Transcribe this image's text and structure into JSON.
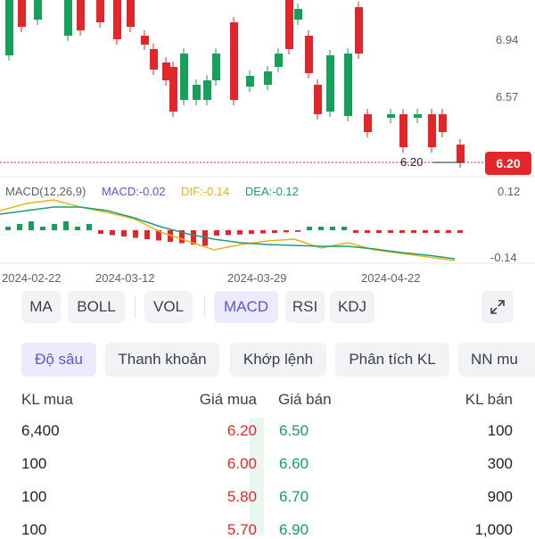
{
  "price_axis": {
    "labels": [
      "6.94",
      "6.57"
    ]
  },
  "last_price": {
    "label": "6.20",
    "badge": "6.20"
  },
  "macd_legend": {
    "params": "MACD(12,26,9)",
    "macd": "MACD:-0.02",
    "dif": "DIF:-0.14",
    "dea": "DEA:-0.12",
    "axis_top": "0.12",
    "axis_bottom": "-0.14"
  },
  "dates": [
    "2024-02-22",
    "2024-03-12",
    "2024-03-29",
    "2024-04-22"
  ],
  "indicators": {
    "buttons": [
      {
        "label": "MA",
        "active": false
      },
      {
        "label": "BOLL",
        "active": false
      },
      {
        "label": "VOL",
        "active": false
      },
      {
        "label": "MACD",
        "active": true
      },
      {
        "label": "RSI",
        "active": false
      },
      {
        "label": "KDJ",
        "active": false
      }
    ],
    "expand_icon": "expand-icon"
  },
  "tabs": [
    {
      "label": "Độ sâu",
      "active": true
    },
    {
      "label": "Thanh khoản",
      "active": false
    },
    {
      "label": "Khớp lệnh",
      "active": false
    },
    {
      "label": "Phân tích KL",
      "active": false
    },
    {
      "label": "NN mu",
      "active": false
    }
  ],
  "order_book": {
    "headers": {
      "bid_volume": "KL mua",
      "bid_price": "Giá mua",
      "ask_price": "Giá bán",
      "ask_volume": "KL bán"
    },
    "rows": [
      {
        "bid_volume": "6,400",
        "bid_price": "6.20",
        "ask_price": "6.50",
        "ask_volume": "100"
      },
      {
        "bid_volume": "100",
        "bid_price": "6.00",
        "ask_price": "6.60",
        "ask_volume": "300"
      },
      {
        "bid_volume": "100",
        "bid_price": "5.80",
        "ask_price": "6.70",
        "ask_volume": "900"
      },
      {
        "bid_volume": "100",
        "bid_price": "5.70",
        "ask_price": "6.90",
        "ask_volume": "1,000"
      }
    ]
  },
  "colors": {
    "up": "#16a05a",
    "down": "#e3262b",
    "dif": "#e8b416",
    "dea": "#1f9c74",
    "accent": "#5b55d8"
  },
  "chart_data": {
    "type": "candlestick",
    "y_axis_ticks": [
      6.94,
      6.57
    ],
    "last_price": 6.2,
    "x_tick_labels": [
      "2024-02-22",
      "2024-03-12",
      "2024-03-29",
      "2024-04-22"
    ],
    "macd_axis_ticks": [
      0.12,
      -0.14
    ]
  }
}
